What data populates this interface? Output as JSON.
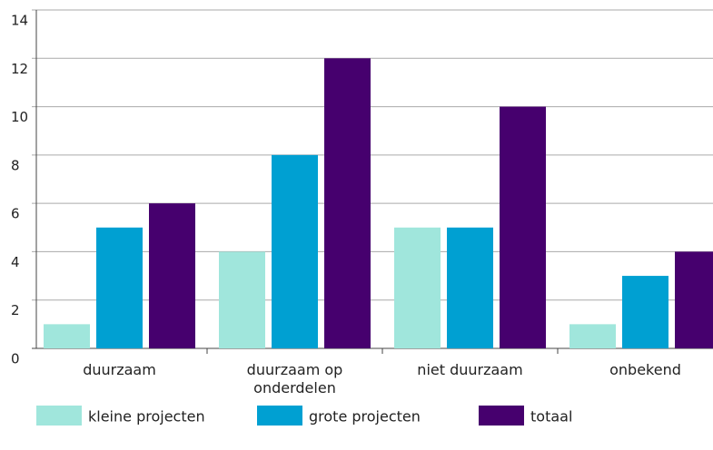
{
  "chart_data": {
    "type": "bar",
    "categories": [
      "duurzaam",
      "duurzaam op onderdelen",
      "niet duurzaam",
      "onbekend"
    ],
    "series": [
      {
        "name": "kleine projecten",
        "color": "#a0e6dc",
        "values": [
          1,
          4,
          5,
          1
        ]
      },
      {
        "name": "grote projecten",
        "color": "#00a0d2",
        "values": [
          5,
          8,
          5,
          3
        ]
      },
      {
        "name": "totaal",
        "color": "#46006e",
        "values": [
          6,
          12,
          10,
          4
        ]
      }
    ],
    "ylim": [
      0,
      14
    ],
    "yticks": [
      0,
      2,
      4,
      6,
      8,
      10,
      12,
      14
    ],
    "grid": true,
    "legend": "bottom"
  }
}
